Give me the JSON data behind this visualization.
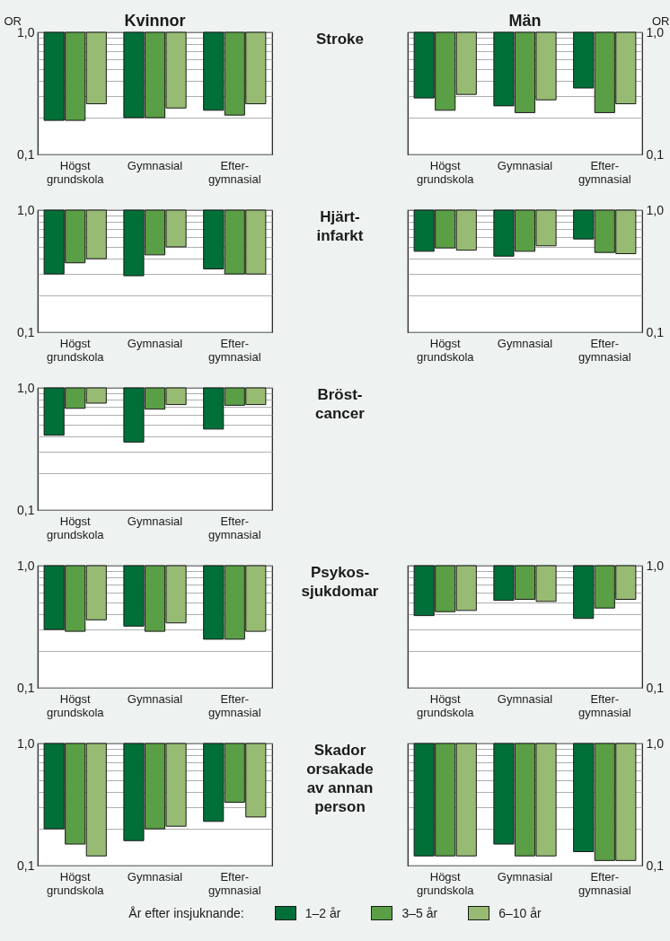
{
  "chart_data": [
    {
      "type": "bar",
      "subtitle": "Kvinnor",
      "ylabel": "OR",
      "categories": [
        "Högst\ngrundskola",
        "Gymnasial",
        "Efter-\ngymnasial"
      ],
      "log": true,
      "ylim": [
        0.1,
        1
      ],
      "yticks": [
        {
          "value": 0.1,
          "label": "0,1"
        },
        {
          "value": 0.2,
          "label": null
        },
        {
          "value": 0.3,
          "label": null
        },
        {
          "value": 0.4,
          "label": null
        },
        {
          "value": 0.5,
          "label": null
        },
        {
          "value": 0.6,
          "label": null
        },
        {
          "value": 0.7,
          "label": null
        },
        {
          "value": 0.8,
          "label": null
        },
        {
          "value": 0.9,
          "label": null
        },
        {
          "value": 1,
          "label": "1,0"
        }
      ],
      "grid": true,
      "series": [
        {
          "color": "#006f38",
          "base": [
            1,
            1,
            1
          ],
          "values": [
            -0.81,
            -0.8,
            -0.77
          ]
        },
        {
          "color": "#5a9e45",
          "base": [
            1,
            1,
            1
          ],
          "values": [
            -0.81,
            -0.8,
            -0.79
          ]
        },
        {
          "color": "#98bb74",
          "base": [
            1,
            1,
            1
          ],
          "values": [
            -0.74,
            -0.76,
            -0.74
          ]
        }
      ]
    },
    {
      "type": "other",
      "title": "Stroke"
    },
    {
      "type": "bar",
      "subtitle": "Män",
      "y2label": "OR",
      "categories": [
        "Högst\ngrundskola",
        "Gymnasial",
        "Efter-\ngymnasial"
      ],
      "log": "y2",
      "y2lim": [
        0.1,
        1
      ],
      "y2ticks": [
        {
          "value": 0.1,
          "label": "0,1"
        },
        {
          "value": 0.2,
          "label": null
        },
        {
          "value": 0.3,
          "label": null
        },
        {
          "value": 0.4,
          "label": null
        },
        {
          "value": 0.5,
          "label": null
        },
        {
          "value": 0.6,
          "label": null
        },
        {
          "value": 0.7,
          "label": null
        },
        {
          "value": 0.8,
          "label": null
        },
        {
          "value": 0.9,
          "label": null
        },
        {
          "value": 1,
          "label": "1,0"
        }
      ],
      "grid": true,
      "series": [
        {
          "color": "#006f38",
          "axis": "y2",
          "base": [
            1,
            1,
            1
          ],
          "values": [
            -0.71,
            -0.75,
            -0.65
          ]
        },
        {
          "color": "#5a9e45",
          "axis": "y2",
          "base": [
            1,
            1,
            1
          ],
          "values": [
            -0.77,
            -0.78,
            -0.78
          ]
        },
        {
          "color": "#98bb74",
          "axis": "y2",
          "base": [
            1,
            1,
            1
          ],
          "values": [
            -0.69,
            -0.72,
            -0.74
          ]
        }
      ]
    },
    {
      "type": "bar",
      "categories": [
        "Högst\ngrundskola",
        "Gymnasial",
        "Efter-\ngymnasial"
      ],
      "log": true,
      "ylim": [
        0.1,
        1
      ],
      "yticks": [
        {
          "value": 0.1,
          "label": "0,1"
        },
        {
          "value": 0.2,
          "label": null
        },
        {
          "value": 0.3,
          "label": null
        },
        {
          "value": 0.4,
          "label": null
        },
        {
          "value": 0.5,
          "label": null
        },
        {
          "value": 0.6,
          "label": null
        },
        {
          "value": 0.7,
          "label": null
        },
        {
          "value": 0.8,
          "label": null
        },
        {
          "value": 0.9,
          "label": null
        },
        {
          "value": 1,
          "label": "1,0"
        }
      ],
      "grid": true,
      "series": [
        {
          "color": "#006f38",
          "base": [
            1,
            1,
            1
          ],
          "values": [
            -0.7,
            -0.71,
            -0.67
          ]
        },
        {
          "color": "#5a9e45",
          "base": [
            1,
            1,
            1
          ],
          "values": [
            -0.63,
            -0.57,
            -0.7
          ]
        },
        {
          "color": "#98bb74",
          "base": [
            1,
            1,
            1
          ],
          "values": [
            -0.6,
            -0.5,
            -0.7
          ]
        }
      ]
    },
    {
      "type": "other",
      "title": "Hjärt-\ninfarkt"
    },
    {
      "type": "bar",
      "categories": [
        "Högst\ngrundskola",
        "Gymnasial",
        "Efter-\ngymnasial"
      ],
      "log": "y2",
      "y2lim": [
        0.1,
        1
      ],
      "y2ticks": [
        {
          "value": 0.1,
          "label": "0,1"
        },
        {
          "value": 0.2,
          "label": null
        },
        {
          "value": 0.3,
          "label": null
        },
        {
          "value": 0.4,
          "label": null
        },
        {
          "value": 0.5,
          "label": null
        },
        {
          "value": 0.6,
          "label": null
        },
        {
          "value": 0.7,
          "label": null
        },
        {
          "value": 0.8,
          "label": null
        },
        {
          "value": 0.9,
          "label": null
        },
        {
          "value": 1,
          "label": "1,0"
        }
      ],
      "grid": true,
      "series": [
        {
          "color": "#006f38",
          "axis": "y2",
          "base": [
            1,
            1,
            1
          ],
          "values": [
            -0.54,
            -0.58,
            -0.42
          ]
        },
        {
          "color": "#5a9e45",
          "axis": "y2",
          "base": [
            1,
            1,
            1
          ],
          "values": [
            -0.51,
            -0.54,
            -0.55
          ]
        },
        {
          "color": "#98bb74",
          "axis": "y2",
          "base": [
            1,
            1,
            1
          ],
          "values": [
            -0.53,
            -0.49,
            -0.56
          ]
        }
      ]
    },
    {
      "type": "bar",
      "categories": [
        "Högst\ngrundskola",
        "Gymnasial",
        "Efter-\ngymnasial"
      ],
      "log": true,
      "ylim": [
        0.1,
        1
      ],
      "yticks": [
        {
          "value": 0.1,
          "label": "0,1"
        },
        {
          "value": 0.2,
          "label": null
        },
        {
          "value": 0.3,
          "label": null
        },
        {
          "value": 0.4,
          "label": null
        },
        {
          "value": 0.5,
          "label": null
        },
        {
          "value": 0.6,
          "label": null
        },
        {
          "value": 0.7,
          "label": null
        },
        {
          "value": 0.8,
          "label": null
        },
        {
          "value": 0.9,
          "label": null
        },
        {
          "value": 1,
          "label": "1,0"
        }
      ],
      "grid": true,
      "series": [
        {
          "color": "#006f38",
          "base": [
            1,
            1,
            1
          ],
          "values": [
            -0.59,
            -0.64,
            -0.54
          ]
        },
        {
          "color": "#5a9e45",
          "base": [
            1,
            1,
            1
          ],
          "values": [
            -0.32,
            -0.33,
            -0.28
          ]
        },
        {
          "color": "#98bb74",
          "base": [
            1,
            1,
            1
          ],
          "values": [
            -0.25,
            -0.27,
            -0.27
          ]
        }
      ]
    },
    {
      "type": "other",
      "title": "Bröst-\ncancer"
    },
    {
      "type": "bar",
      "categories": [
        "Högst\ngrundskola",
        "Gymnasial",
        "Efter-\ngymnasial"
      ],
      "log": true,
      "ylim": [
        0.1,
        1
      ],
      "yticks": [
        {
          "value": 0.1,
          "label": "0,1"
        },
        {
          "value": 0.2,
          "label": null
        },
        {
          "value": 0.3,
          "label": null
        },
        {
          "value": 0.4,
          "label": null
        },
        {
          "value": 0.5,
          "label": null
        },
        {
          "value": 0.6,
          "label": null
        },
        {
          "value": 0.7,
          "label": null
        },
        {
          "value": 0.8,
          "label": null
        },
        {
          "value": 0.9,
          "label": null
        },
        {
          "value": 1,
          "label": "1,0"
        }
      ],
      "grid": true,
      "series": [
        {
          "color": "#006f38",
          "base": [
            1,
            1,
            1
          ],
          "values": [
            -0.7,
            -0.68,
            -0.75
          ]
        },
        {
          "color": "#5a9e45",
          "base": [
            1,
            1,
            1
          ],
          "values": [
            -0.71,
            -0.71,
            -0.75
          ]
        },
        {
          "color": "#98bb74",
          "base": [
            1,
            1,
            1
          ],
          "values": [
            -0.64,
            -0.66,
            -0.71
          ]
        }
      ]
    },
    {
      "type": "other",
      "title": "Psykos-\nsjukdomar"
    },
    {
      "type": "bar",
      "categories": [
        "Högst\ngrundskola",
        "Gymnasial",
        "Efter-\ngymnasial"
      ],
      "log": "y2",
      "y2lim": [
        0.1,
        1
      ],
      "y2ticks": [
        {
          "value": 0.1,
          "label": "0,1"
        },
        {
          "value": 0.2,
          "label": null
        },
        {
          "value": 0.3,
          "label": null
        },
        {
          "value": 0.4,
          "label": null
        },
        {
          "value": 0.5,
          "label": null
        },
        {
          "value": 0.6,
          "label": null
        },
        {
          "value": 0.7,
          "label": null
        },
        {
          "value": 0.8,
          "label": null
        },
        {
          "value": 0.9,
          "label": null
        },
        {
          "value": 1,
          "label": "1,0"
        }
      ],
      "grid": true,
      "series": [
        {
          "color": "#006f38",
          "axis": "y2",
          "base": [
            1,
            1,
            1
          ],
          "values": [
            -0.61,
            -0.48,
            -0.63
          ]
        },
        {
          "color": "#5a9e45",
          "axis": "y2",
          "base": [
            1,
            1,
            1
          ],
          "values": [
            -0.58,
            -0.47,
            -0.55
          ]
        },
        {
          "color": "#98bb74",
          "axis": "y2",
          "base": [
            1,
            1,
            1
          ],
          "values": [
            -0.57,
            -0.49,
            -0.47
          ]
        }
      ]
    },
    {
      "type": "bar",
      "categories": [
        "Högst\ngrundskola",
        "Gymnasial",
        "Efter-\ngymnasial"
      ],
      "log": true,
      "ylim": [
        0.1,
        1
      ],
      "yticks": [
        {
          "value": 0.1,
          "label": "0,1"
        },
        {
          "value": 0.2,
          "label": null
        },
        {
          "value": 0.3,
          "label": null
        },
        {
          "value": 0.4,
          "label": null
        },
        {
          "value": 0.5,
          "label": null
        },
        {
          "value": 0.6,
          "label": null
        },
        {
          "value": 0.7,
          "label": null
        },
        {
          "value": 0.8,
          "label": null
        },
        {
          "value": 0.9,
          "label": null
        },
        {
          "value": 1,
          "label": "1,0"
        }
      ],
      "grid": true,
      "series": [
        {
          "color": "#006f38",
          "base": [
            1,
            1,
            1
          ],
          "values": [
            -0.8,
            -0.84,
            -0.77
          ]
        },
        {
          "color": "#5a9e45",
          "base": [
            1,
            1,
            1
          ],
          "values": [
            -0.85,
            -0.8,
            -0.67
          ]
        },
        {
          "color": "#98bb74",
          "base": [
            1,
            1,
            1
          ],
          "values": [
            -0.88,
            -0.79,
            -0.75
          ]
        }
      ]
    },
    {
      "type": "other",
      "title": "Skador\norsakade\nav annan\nperson"
    },
    {
      "type": "bar",
      "categories": [
        "Högst\ngrundskola",
        "Gymnasial",
        "Efter-\ngymnasial"
      ],
      "log": "y2",
      "y2lim": [
        0.1,
        1
      ],
      "y2ticks": [
        {
          "value": 0.1,
          "label": "0,1"
        },
        {
          "value": 0.2,
          "label": null
        },
        {
          "value": 0.3,
          "label": null
        },
        {
          "value": 0.4,
          "label": null
        },
        {
          "value": 0.5,
          "label": null
        },
        {
          "value": 0.6,
          "label": null
        },
        {
          "value": 0.7,
          "label": null
        },
        {
          "value": 0.8,
          "label": null
        },
        {
          "value": 0.9,
          "label": null
        },
        {
          "value": 1,
          "label": "1,0"
        }
      ],
      "grid": true,
      "legend": "bottom",
      "legend_title": "År efter insjuknande:",
      "series": [
        {
          "name": "1–2 år",
          "color": "#006f38",
          "axis": "y2",
          "base": [
            1,
            1,
            1
          ],
          "values": [
            -0.88,
            -0.85,
            -0.87
          ]
        },
        {
          "name": "3–5 år",
          "color": "#5a9e45",
          "axis": "y2",
          "base": [
            1,
            1,
            1
          ],
          "values": [
            -0.88,
            -0.88,
            -0.89
          ]
        },
        {
          "name": "6–10 år",
          "color": "#98bb74",
          "axis": "y2",
          "base": [
            1,
            1,
            1
          ],
          "values": [
            -0.88,
            -0.88,
            -0.89
          ]
        }
      ]
    }
  ]
}
